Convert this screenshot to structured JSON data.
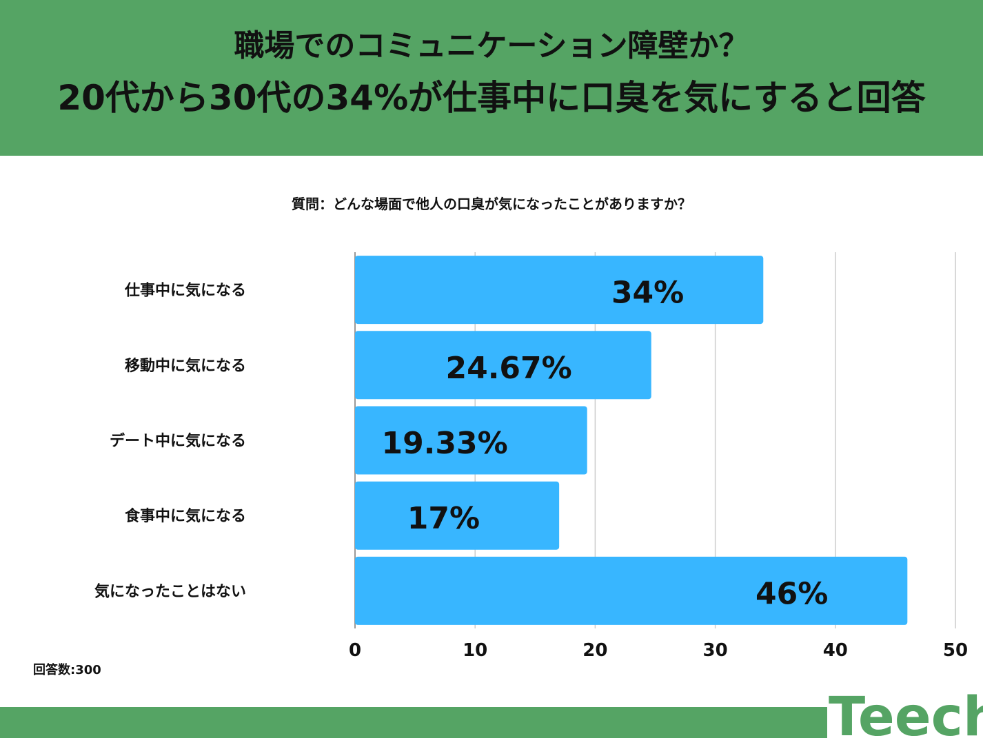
{
  "header": {
    "title_line1": "職場でのコミュニケーション障壁か？",
    "title_line2": "20代から30代の34%が仕事中に口臭を気にすると回答"
  },
  "question": "質問：どんな場面で他人の口臭が気になったことがありますか？",
  "footnote": "回答数:300",
  "logo": {
    "text": "Teech",
    "color": "#55a464"
  },
  "colors": {
    "header": "#55a464",
    "bar": "#38b6ff",
    "grid": "#cccccc"
  },
  "chart_data": {
    "type": "bar",
    "orientation": "horizontal",
    "categories": [
      "仕事中に気になる",
      "移動中に気になる",
      "デート中に気になる",
      "食事中に気になる",
      "気になったことはない"
    ],
    "values": [
      34,
      24.67,
      19.33,
      17,
      46
    ],
    "value_labels": [
      "34%",
      "24.67%",
      "19.33%",
      "17%",
      "46%"
    ],
    "xlim": [
      0,
      50
    ],
    "xticks": [
      "0",
      "10",
      "20",
      "30",
      "40",
      "50"
    ],
    "grid": true
  }
}
